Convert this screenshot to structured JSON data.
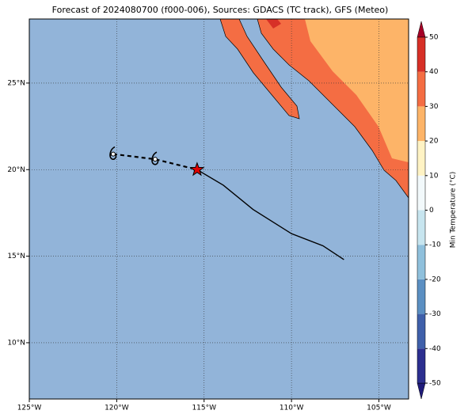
{
  "chart_data": {
    "type": "map",
    "title": "Forecast of 2024080700 (f000-006), Sources: GDACS (TC track), GFS (Meteo)",
    "xlim": [
      -125,
      -103.3
    ],
    "ylim": [
      6.75,
      28.7
    ],
    "xticks": [
      {
        "value": -125,
        "label": "125°W"
      },
      {
        "value": -120,
        "label": "120°W"
      },
      {
        "value": -115,
        "label": "115°W"
      },
      {
        "value": -110,
        "label": "110°W"
      },
      {
        "value": -105,
        "label": "105°W"
      }
    ],
    "yticks": [
      {
        "value": 10,
        "label": "10°N"
      },
      {
        "value": 15,
        "label": "15°N"
      },
      {
        "value": 20,
        "label": "20°N"
      },
      {
        "value": 25,
        "label": "25°N"
      }
    ],
    "grid": true,
    "colorbar": {
      "label": "Min Temperature (°C)",
      "lim": [
        -50,
        50
      ],
      "ticks": [
        -50,
        -40,
        -30,
        -20,
        -10,
        0,
        10,
        20,
        30,
        40,
        50
      ],
      "colors": [
        "#1f1b7a",
        "#2c2f8f",
        "#3f60aa",
        "#5b8fc2",
        "#8fc0dc",
        "#c7e5ef",
        "#f2f9fb",
        "#fff3c4",
        "#fdb468",
        "#f46d43",
        "#d73027",
        "#a50026"
      ]
    },
    "past_track": {
      "lon": [
        -120.2,
        -117.8,
        -115.4
      ],
      "lat": [
        20.9,
        20.6,
        20.0
      ]
    },
    "forecast_track": {
      "lon": [
        -115.4,
        -113.9,
        -112.2,
        -110.0,
        -108.2,
        -107.0
      ],
      "lat": [
        20.0,
        19.1,
        17.7,
        16.3,
        15.6,
        14.8
      ]
    },
    "current_position": {
      "lon": -115.4,
      "lat": 20.0
    }
  }
}
